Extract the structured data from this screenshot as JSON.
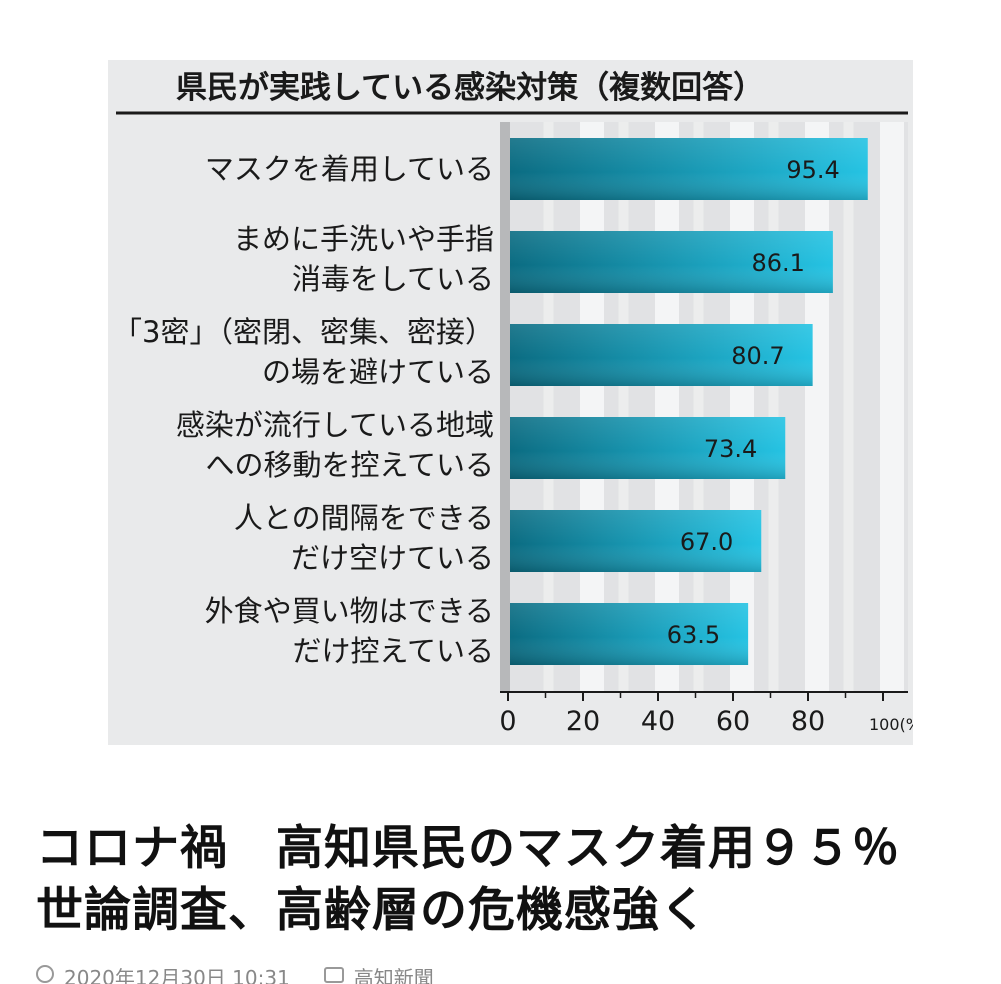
{
  "chart_data": {
    "type": "bar",
    "orientation": "horizontal",
    "title": "県民が実践している感染対策（複数回答）",
    "categories": [
      [
        "マスクを着用している"
      ],
      [
        "まめに手洗いや手指",
        "消毒をしている"
      ],
      [
        "「3密」（密閉、密集、密接）",
        "の場を避けている"
      ],
      [
        "感染が流行している地域",
        "への移動を控えている"
      ],
      [
        "人との間隔をできる",
        "だけ空けている"
      ],
      [
        "外食や買い物はできる",
        "だけ控えている"
      ]
    ],
    "values": [
      95.4,
      86.1,
      80.7,
      73.4,
      67.0,
      63.5
    ],
    "value_labels": [
      "95.4",
      "86.1",
      "80.7",
      "73.4",
      "67.0",
      "63.5"
    ],
    "xlim": [
      0,
      100
    ],
    "x_ticks": [
      "0",
      "20",
      "40",
      "60",
      "80",
      "100(%)"
    ],
    "x_tick_values": [
      0,
      20,
      40,
      60,
      80,
      100
    ],
    "grid": true,
    "bar_colors": [
      "#0b6c82",
      "#25c3e3"
    ],
    "background_color": "#e9eaeb"
  },
  "article": {
    "headline": "コロナ禍　高知県民のマスク着用９５％　世論調査、高齢層の危機感強く",
    "date": "2020年12月30日 10:31",
    "source": "高知新聞",
    "date_icon": "clock-icon",
    "source_icon": "camera-icon"
  }
}
